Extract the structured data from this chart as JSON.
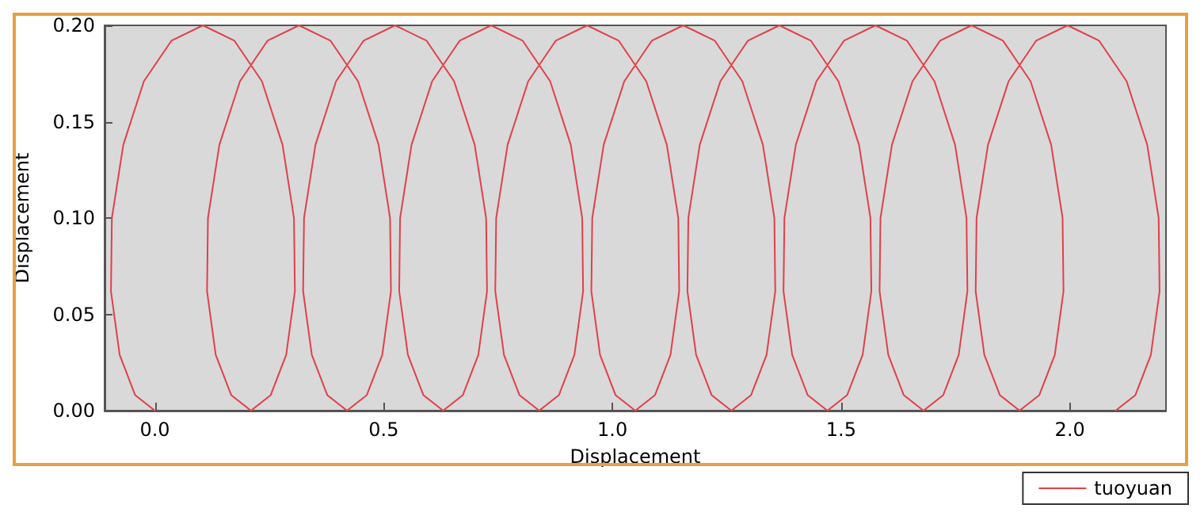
{
  "chart_data": {
    "type": "line",
    "xlabel": "Displacement",
    "ylabel": "Displacement",
    "series": [
      {
        "name": "tuoyuan",
        "color": "#e0404a",
        "x": [
          0,
          -0.043,
          -0.077,
          -0.096,
          -0.094,
          -0.069,
          -0.024,
          0.036,
          0.105,
          0.174,
          0.234,
          0.279,
          0.304,
          0.306,
          0.287,
          0.253,
          0.21,
          0.167,
          0.133,
          0.114,
          0.116,
          0.141,
          0.186,
          0.246,
          0.315,
          0.384,
          0.444,
          0.489,
          0.514,
          0.516,
          0.497,
          0.463,
          0.42,
          0.377,
          0.343,
          0.324,
          0.326,
          0.351,
          0.396,
          0.456,
          0.525,
          0.594,
          0.654,
          0.699,
          0.724,
          0.726,
          0.707,
          0.673,
          0.63,
          0.587,
          0.553,
          0.534,
          0.536,
          0.561,
          0.606,
          0.666,
          0.735,
          0.804,
          0.864,
          0.909,
          0.934,
          0.936,
          0.917,
          0.883,
          0.84,
          0.797,
          0.763,
          0.744,
          0.746,
          0.771,
          0.816,
          0.876,
          0.945,
          1.014,
          1.074,
          1.119,
          1.144,
          1.146,
          1.127,
          1.093,
          1.05,
          1.007,
          0.973,
          0.954,
          0.956,
          0.981,
          1.026,
          1.086,
          1.155,
          1.224,
          1.284,
          1.329,
          1.354,
          1.356,
          1.337,
          1.303,
          1.26,
          1.217,
          1.183,
          1.164,
          1.166,
          1.191,
          1.236,
          1.296,
          1.365,
          1.434,
          1.494,
          1.539,
          1.564,
          1.566,
          1.547,
          1.513,
          1.47,
          1.427,
          1.393,
          1.374,
          1.376,
          1.401,
          1.446,
          1.506,
          1.575,
          1.644,
          1.704,
          1.749,
          1.774,
          1.776,
          1.757,
          1.723,
          1.68,
          1.637,
          1.603,
          1.584,
          1.586,
          1.611,
          1.656,
          1.716,
          1.785,
          1.854,
          1.914,
          1.959,
          1.984,
          1.986,
          1.967,
          1.933,
          1.89,
          1.847,
          1.813,
          1.794,
          1.796,
          1.821,
          1.866,
          1.926,
          1.995,
          2.064,
          2.124,
          2.169,
          2.194,
          2.196,
          2.177,
          2.143,
          2.1
        ],
        "values": [
          0,
          0.008,
          0.029,
          0.062,
          0.1,
          0.138,
          0.171,
          0.192,
          0.2,
          0.192,
          0.171,
          0.138,
          0.1,
          0.062,
          0.029,
          0.008,
          0,
          0.008,
          0.029,
          0.062,
          0.1,
          0.138,
          0.171,
          0.192,
          0.2,
          0.192,
          0.171,
          0.138,
          0.1,
          0.062,
          0.029,
          0.008,
          0,
          0.008,
          0.029,
          0.062,
          0.1,
          0.138,
          0.171,
          0.192,
          0.2,
          0.192,
          0.171,
          0.138,
          0.1,
          0.062,
          0.029,
          0.008,
          0,
          0.008,
          0.029,
          0.062,
          0.1,
          0.138,
          0.171,
          0.192,
          0.2,
          0.192,
          0.171,
          0.138,
          0.1,
          0.062,
          0.029,
          0.008,
          0,
          0.008,
          0.029,
          0.062,
          0.1,
          0.138,
          0.171,
          0.192,
          0.2,
          0.192,
          0.171,
          0.138,
          0.1,
          0.062,
          0.029,
          0.008,
          0,
          0.008,
          0.029,
          0.062,
          0.1,
          0.138,
          0.171,
          0.192,
          0.2,
          0.192,
          0.171,
          0.138,
          0.1,
          0.062,
          0.029,
          0.008,
          0,
          0.008,
          0.029,
          0.062,
          0.1,
          0.138,
          0.171,
          0.192,
          0.2,
          0.192,
          0.171,
          0.138,
          0.1,
          0.062,
          0.029,
          0.008,
          0,
          0.008,
          0.029,
          0.062,
          0.1,
          0.138,
          0.171,
          0.192,
          0.2,
          0.192,
          0.171,
          0.138,
          0.1,
          0.062,
          0.029,
          0.008,
          0,
          0.008,
          0.029,
          0.062,
          0.1,
          0.138,
          0.171,
          0.192,
          0.2,
          0.192,
          0.171,
          0.138,
          0.1,
          0.062,
          0.029,
          0.008,
          0,
          0.008,
          0.029,
          0.062,
          0.1,
          0.138,
          0.171,
          0.192,
          0.2,
          0.192,
          0.171,
          0.138,
          0.1,
          0.062,
          0.029,
          0.008,
          0
        ]
      }
    ],
    "xlim": [
      -0.11,
      2.21
    ],
    "xticks": [
      {
        "value": 0,
        "label": "0.0"
      },
      {
        "value": 0.5,
        "label": "0.5"
      },
      {
        "value": 1,
        "label": "1.0"
      },
      {
        "value": 1.5,
        "label": "1.5"
      },
      {
        "value": 2,
        "label": "2.0"
      }
    ],
    "ylim": [
      0,
      0.2
    ],
    "yticks": [
      {
        "value": 0,
        "label": "0.00"
      },
      {
        "value": 0.05,
        "label": "0.05"
      },
      {
        "value": 0.1,
        "label": "0.10"
      },
      {
        "value": 0.15,
        "label": "0.15"
      },
      {
        "value": 0.2,
        "label": "0.20"
      }
    ],
    "grid": false,
    "legend": "bottom right",
    "marker": "none",
    "line_style": "solid"
  }
}
